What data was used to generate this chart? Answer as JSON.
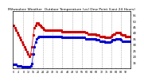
{
  "title": "Milwaukee Weather  Outdoor Temperature (vs) Dew Point (Last 24 Hours)",
  "bg_color": "#ffffff",
  "grid_color": "#888888",
  "temp_color": "#cc0000",
  "dew_color": "#0000cc",
  "ylim": [
    10,
    58
  ],
  "ytick_values": [
    15,
    20,
    25,
    30,
    35,
    40,
    45,
    50,
    55
  ],
  "temp_data": [
    46,
    44,
    42,
    40,
    38,
    36,
    34,
    32,
    30,
    28,
    26,
    24,
    22,
    20,
    22,
    28,
    38,
    44,
    46,
    48,
    48,
    47,
    46,
    45,
    44,
    43,
    42,
    42,
    42,
    42,
    42,
    42,
    42,
    42,
    42,
    42,
    42,
    42,
    42,
    42,
    41,
    41,
    41,
    41,
    41,
    41,
    41,
    41,
    41,
    41,
    41,
    41,
    41,
    41,
    41,
    41,
    41,
    41,
    41,
    40,
    40,
    39,
    39,
    39,
    39,
    39,
    39,
    39,
    38,
    38,
    38,
    37,
    37,
    37,
    37,
    36,
    36,
    36,
    36,
    36,
    37,
    38,
    39,
    39,
    40,
    40,
    40,
    40,
    39,
    38,
    38,
    38,
    37,
    37,
    37,
    37
  ],
  "dew_data": [
    13,
    13,
    13,
    12,
    12,
    12,
    12,
    11,
    11,
    11,
    11,
    11,
    11,
    11,
    12,
    14,
    22,
    28,
    32,
    35,
    36,
    37,
    37,
    37,
    37,
    37,
    37,
    37,
    37,
    37,
    37,
    37,
    37,
    37,
    37,
    37,
    37,
    37,
    37,
    37,
    36,
    36,
    36,
    36,
    36,
    36,
    36,
    36,
    36,
    36,
    36,
    36,
    36,
    36,
    36,
    36,
    36,
    36,
    36,
    35,
    35,
    35,
    35,
    35,
    35,
    35,
    35,
    35,
    34,
    34,
    34,
    33,
    33,
    33,
    33,
    32,
    32,
    32,
    32,
    32,
    33,
    34,
    34,
    34,
    35,
    35,
    35,
    35,
    34,
    33,
    33,
    33,
    33,
    33,
    33,
    33
  ],
  "n_points": 96,
  "vgrid_positions": [
    8,
    16,
    24,
    32,
    40,
    48,
    56,
    64,
    72,
    80,
    88
  ],
  "title_fontsize": 3.2,
  "tick_fontsize": 2.8,
  "linewidth": 0.5,
  "markersize": 1.2
}
